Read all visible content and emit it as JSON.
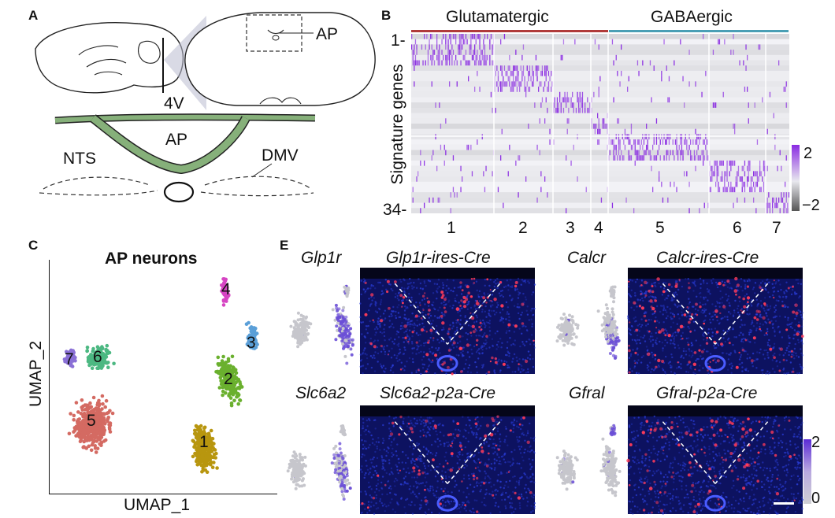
{
  "panelA": {
    "label": "A",
    "ap_inset_label": "AP",
    "ventricle_label": "4V",
    "ap_label": "AP",
    "nts_label": "NTS",
    "dmv_label": "DMV"
  },
  "panelB": {
    "label": "B",
    "group_labels": [
      "Glutamatergic",
      "GABAergic"
    ],
    "group_colors": [
      "#b03a3a",
      "#4a9fb5"
    ],
    "ylabel": "Signature genes",
    "row_top": "1-",
    "row_bottom": "34-",
    "cluster_labels": [
      "1",
      "2",
      "3",
      "4",
      "5",
      "6",
      "7"
    ],
    "colorbar_max": "2",
    "colorbar_min": "−2",
    "colors": {
      "high": "#8a2be2",
      "low": "#555555"
    }
  },
  "panelC": {
    "label": "C",
    "title": "AP neurons",
    "xlabel": "UMAP_1",
    "ylabel": "UMAP_2",
    "clusters": [
      {
        "id": "1",
        "color": "#b8960f"
      },
      {
        "id": "2",
        "color": "#6ab02e"
      },
      {
        "id": "3",
        "color": "#5a9fd8"
      },
      {
        "id": "4",
        "color": "#d645c3"
      },
      {
        "id": "5",
        "color": "#d46a62"
      },
      {
        "id": "6",
        "color": "#4cb882"
      },
      {
        "id": "7",
        "color": "#8a70d6"
      }
    ]
  },
  "panelE": {
    "label": "E",
    "rows": [
      [
        {
          "gene": "Glp1r",
          "line": "Glp1r-ires-Cre"
        },
        {
          "gene": "Calcr",
          "line": "Calcr-ires-Cre"
        }
      ],
      [
        {
          "gene": "Slc6a2",
          "line": "Slc6a2-p2a-Cre"
        },
        {
          "gene": "Gfral",
          "line": "Gfral-p2a-Cre"
        }
      ]
    ],
    "colorbar_max": "2",
    "colorbar_min": "0"
  }
}
